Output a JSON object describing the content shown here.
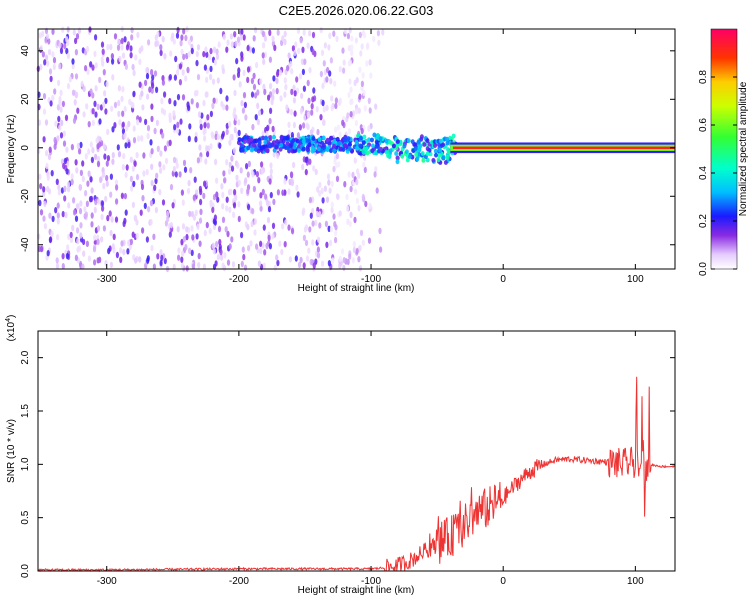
{
  "title": "C2E5.2026.020.06.22.G03",
  "chart_data": [
    {
      "type": "heatmap",
      "xlabel": "Height of straight line (km)",
      "ylabel": "Frequency (Hz)",
      "xlim": [
        -352,
        130
      ],
      "ylim": [
        -50,
        49
      ],
      "xticks": [
        -300,
        -200,
        -100,
        0,
        100
      ],
      "yticks": [
        -40,
        -20,
        0,
        20,
        40
      ],
      "colorbar": {
        "label": "Normalized spectral amplitude",
        "range": [
          0.0,
          1.0
        ],
        "ticks": [
          0.0,
          0.2,
          0.4,
          0.6,
          0.8
        ]
      },
      "features": [
        {
          "x_range": [
            -352,
            -100
          ],
          "description_value": "broadband low amplitude noise, amplitude ~0.05-0.2"
        },
        {
          "x_range": [
            -195,
            -40
          ],
          "y_center": 1,
          "amplitude": [
            0.2,
            0.5
          ]
        },
        {
          "x_range": [
            -40,
            130
          ],
          "y_center": 0,
          "amplitude": [
            0.8,
            1.0
          ]
        }
      ]
    },
    {
      "type": "line",
      "xlabel": "Height of straight line (km)",
      "ylabel": "SNR (10 * v/v)",
      "y_multiplier": "(x10^4)",
      "xlim": [
        -352,
        130
      ],
      "ylim": [
        0,
        2.25
      ],
      "xticks": [
        -300,
        -200,
        -100,
        0,
        100
      ],
      "yticks": [
        0.0,
        0.5,
        1.0,
        1.5,
        2.0
      ],
      "series_color": "#ee3333",
      "x": [
        -352,
        -300,
        -250,
        -200,
        -150,
        -120,
        -100,
        -90,
        -80,
        -70,
        -60,
        -50,
        -40,
        -30,
        -20,
        -10,
        0,
        10,
        20,
        30,
        40,
        50,
        60,
        70,
        80,
        90,
        100,
        105,
        110,
        120,
        130
      ],
      "values": [
        0.01,
        0.01,
        0.015,
        0.02,
        0.02,
        0.02,
        0.02,
        0.03,
        0.05,
        0.1,
        0.18,
        0.25,
        0.32,
        0.42,
        0.55,
        0.6,
        0.68,
        0.82,
        0.93,
        1.0,
        1.04,
        1.05,
        1.04,
        1.03,
        1.02,
        1.0,
        1.02,
        0.9,
        1.0,
        0.98,
        0.98
      ]
    }
  ]
}
